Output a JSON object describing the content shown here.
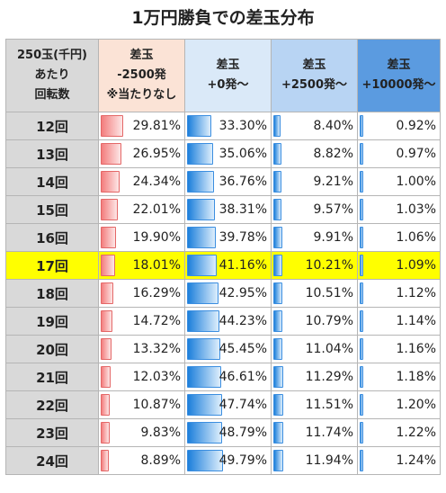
{
  "title": "1万円勝負での差玉分布",
  "header": {
    "col0": [
      "250玉(千円)",
      "あたり",
      "回転数"
    ],
    "col1": [
      "差玉",
      "-2500発",
      "※当たりなし"
    ],
    "col2": [
      "差玉",
      "+0発～"
    ],
    "col3": [
      "差玉",
      "+2500発～"
    ],
    "col4": [
      "差玉",
      "+10000発～"
    ]
  },
  "highlight_row": "17回",
  "highlight_color": "#ffff00",
  "rows": [
    {
      "label": "12回",
      "v1": "29.81%",
      "v2": "33.30%",
      "v3": "8.40%",
      "v4": "0.92%"
    },
    {
      "label": "13回",
      "v1": "26.95%",
      "v2": "35.06%",
      "v3": "8.82%",
      "v4": "0.97%"
    },
    {
      "label": "14回",
      "v1": "24.34%",
      "v2": "36.76%",
      "v3": "9.21%",
      "v4": "1.00%"
    },
    {
      "label": "15回",
      "v1": "22.01%",
      "v2": "38.31%",
      "v3": "9.57%",
      "v4": "1.03%"
    },
    {
      "label": "16回",
      "v1": "19.90%",
      "v2": "39.78%",
      "v3": "9.91%",
      "v4": "1.06%"
    },
    {
      "label": "17回",
      "v1": "18.01%",
      "v2": "41.16%",
      "v3": "10.21%",
      "v4": "1.09%"
    },
    {
      "label": "18回",
      "v1": "16.29%",
      "v2": "42.95%",
      "v3": "10.51%",
      "v4": "1.12%"
    },
    {
      "label": "19回",
      "v1": "14.72%",
      "v2": "44.23%",
      "v3": "10.79%",
      "v4": "1.14%"
    },
    {
      "label": "20回",
      "v1": "13.32%",
      "v2": "45.45%",
      "v3": "11.04%",
      "v4": "1.16%"
    },
    {
      "label": "21回",
      "v1": "12.03%",
      "v2": "46.61%",
      "v3": "11.29%",
      "v4": "1.18%"
    },
    {
      "label": "22回",
      "v1": "10.87%",
      "v2": "47.74%",
      "v3": "11.51%",
      "v4": "1.20%"
    },
    {
      "label": "23回",
      "v1": "9.83%",
      "v2": "48.79%",
      "v3": "11.74%",
      "v4": "1.22%"
    },
    {
      "label": "24回",
      "v1": "8.89%",
      "v2": "49.79%",
      "v3": "11.94%",
      "v4": "1.24%"
    }
  ]
}
